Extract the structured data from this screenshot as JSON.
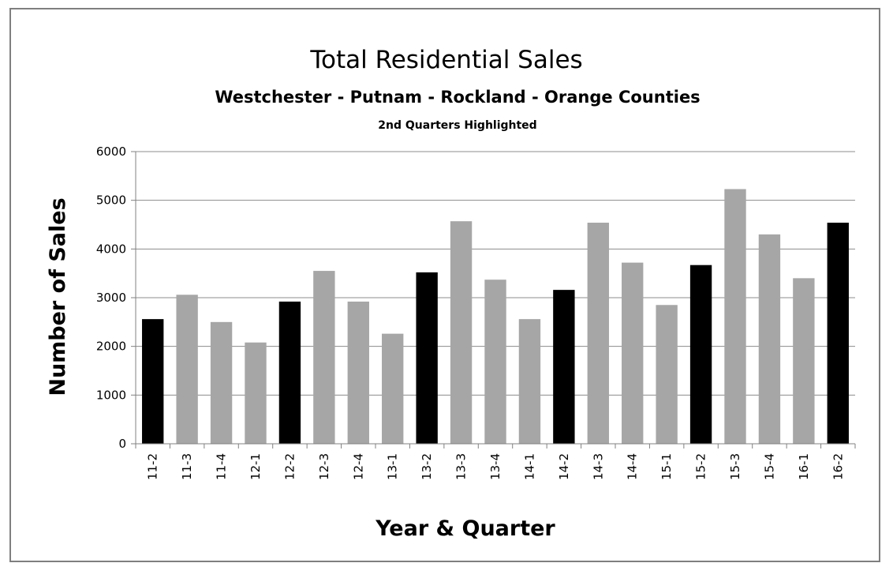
{
  "chart_data": {
    "type": "bar",
    "title": "Total Residential Sales",
    "subtitle": "Westchester - Putnam - Rockland - Orange Counties",
    "note": "2nd Quarters Highlighted",
    "xlabel": "Year & Quarter",
    "ylabel": "Number of Sales",
    "ylim": [
      0,
      6000
    ],
    "yticks": [
      0,
      1000,
      2000,
      3000,
      4000,
      5000,
      6000
    ],
    "grid": true,
    "categories": [
      "11-2",
      "11-3",
      "11-4",
      "12-1",
      "12-2",
      "12-3",
      "12-4",
      "13-1",
      "13-2",
      "13-3",
      "13-4",
      "14-1",
      "14-2",
      "14-3",
      "14-4",
      "15-1",
      "15-2",
      "15-3",
      "15-4",
      "16-1",
      "16-2"
    ],
    "values": [
      2560,
      3060,
      2500,
      2080,
      2920,
      3550,
      2920,
      2260,
      3520,
      4570,
      3370,
      2560,
      3160,
      4540,
      3720,
      2850,
      3670,
      5230,
      4300,
      3400,
      4540
    ],
    "highlighted": [
      "11-2",
      "12-2",
      "13-2",
      "14-2",
      "15-2",
      "16-2"
    ],
    "colors": {
      "highlight": "#000000",
      "normal": "#a6a6a6",
      "grid": "#8c8c8c"
    }
  }
}
